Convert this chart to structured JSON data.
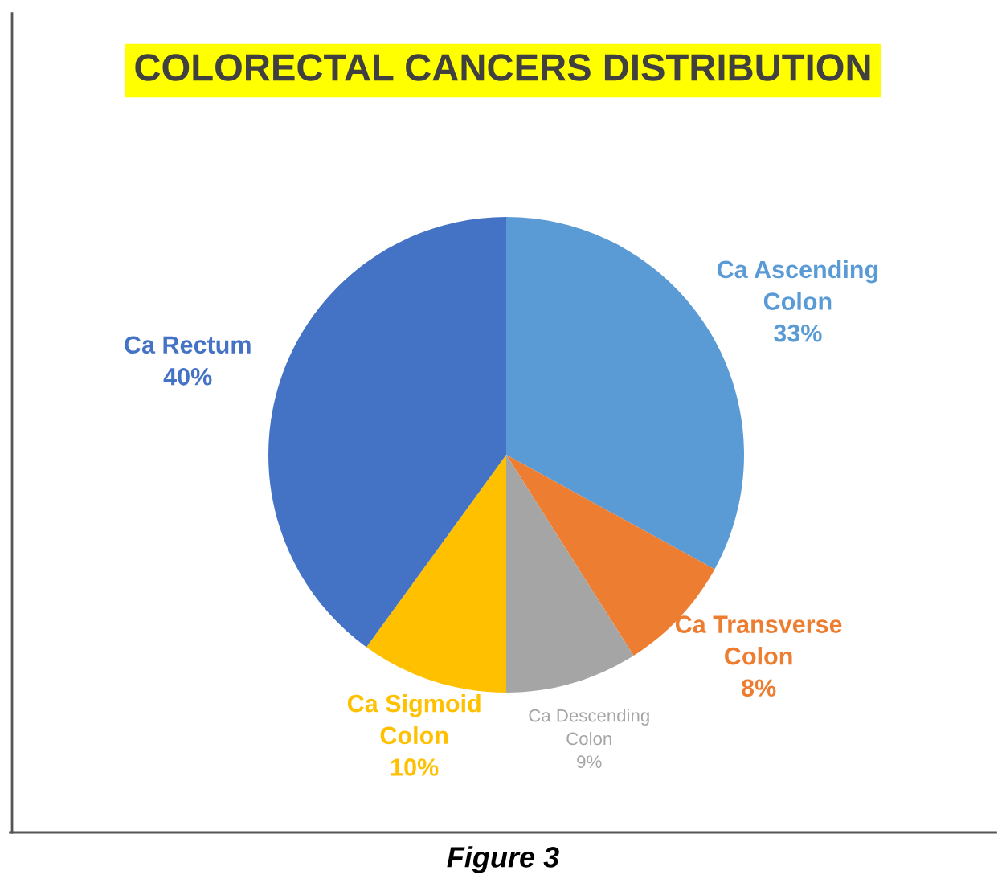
{
  "chart_data": {
    "type": "pie",
    "title": "COLORECTAL CANCERS DISTRIBUTION",
    "categories": [
      "Ca Ascending\nColon",
      "Ca Transverse\nColon",
      "Ca Descending\nColon",
      "Ca Sigmoid\nColon",
      "Ca Rectum"
    ],
    "values": [
      33,
      8,
      9,
      10,
      40
    ],
    "value_labels": [
      "33%",
      "8%",
      "9%",
      "10%",
      "40%"
    ],
    "colors": [
      "#5b9bd5",
      "#ed7d31",
      "#a5a5a5",
      "#ffc000",
      "#4472c4"
    ],
    "annotations": [
      "Figure 3"
    ],
    "legend": false
  }
}
